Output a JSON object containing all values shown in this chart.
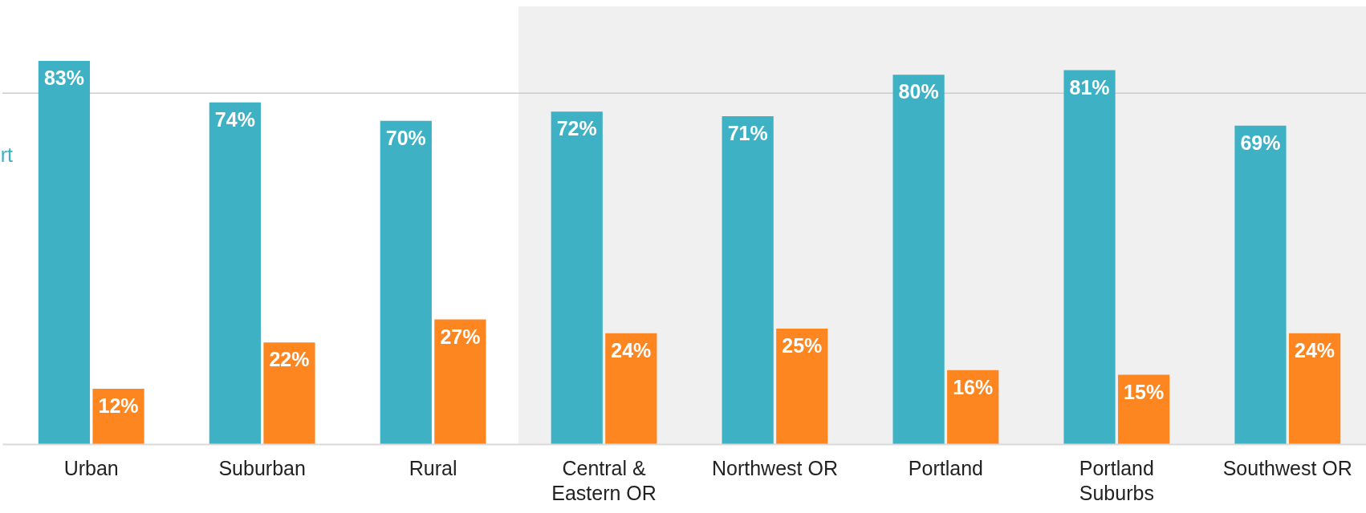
{
  "chart_data": {
    "type": "bar",
    "categories": [
      "Urban",
      "Suburban",
      "Rural",
      "Central & Eastern OR",
      "Northwest OR",
      "Portland",
      "Portland Suburbs",
      "Southwest OR"
    ],
    "series": [
      {
        "name": "rt",
        "color": "#3fb1c5",
        "values": [
          83,
          74,
          70,
          72,
          71,
          80,
          81,
          69
        ],
        "value_labels": [
          "83%",
          "74%",
          "70%",
          "72%",
          "71%",
          "80%",
          "81%",
          "69%"
        ]
      },
      {
        "color": "#fd8621",
        "values": [
          12,
          22,
          27,
          24,
          25,
          16,
          15,
          24
        ],
        "value_labels": [
          "12%",
          "22%",
          "27%",
          "24%",
          "25%",
          "16%",
          "15%",
          "24%"
        ]
      }
    ],
    "tick_labels": "x",
    "ref_lines": [
      {
        "axis": "y",
        "value": 76,
        "color": "#cccccc"
      }
    ],
    "bands": [
      {
        "axis": "x",
        "from": "Central & Eastern OR",
        "to": "Southwest OR",
        "color": "#f0f0f0"
      }
    ]
  }
}
